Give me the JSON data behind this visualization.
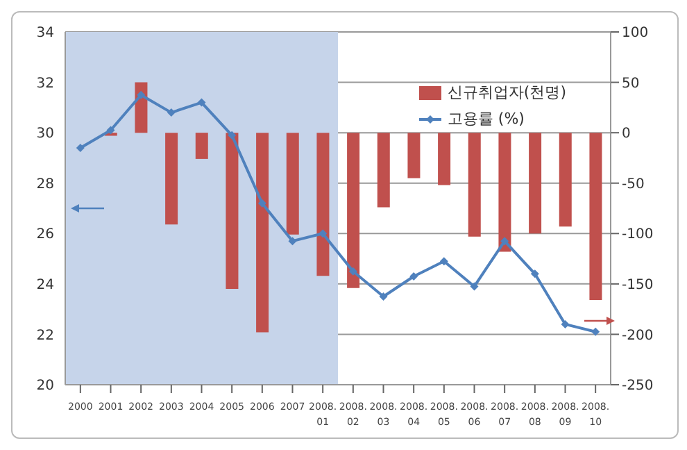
{
  "chart_data": {
    "type": "bar",
    "categories": [
      "2000",
      "2001",
      "2002",
      "2003",
      "2004",
      "2005",
      "2006",
      "2007",
      "2008.01",
      "2008.02",
      "2008.03",
      "2008.04",
      "2008.05",
      "2008.06",
      "2008.07",
      "2008.08",
      "2008.09",
      "2008.10"
    ],
    "series": [
      {
        "name": "신규취업자(천명)",
        "axis": "y2",
        "color": "#c0504d",
        "values": [
          0,
          -3,
          50,
          -91,
          -26,
          -155,
          -198,
          -101,
          -142,
          -154,
          -74,
          -45,
          -52,
          -103,
          -118,
          -100,
          -93,
          -166
        ]
      },
      {
        "name": "고용률 (%)",
        "type": "line",
        "color": "#4f81bd",
        "marker": "diamond",
        "values": [
          29.4,
          30.1,
          31.5,
          30.8,
          31.2,
          29.9,
          27.2,
          25.7,
          26.0,
          24.5,
          23.5,
          24.3,
          24.9,
          23.9,
          25.7,
          24.4,
          22.4,
          22.1
        ]
      }
    ],
    "ylim": [
      20,
      34
    ],
    "yticks": [
      20,
      22,
      24,
      26,
      28,
      30,
      32,
      34
    ],
    "y2lim": [
      -250,
      100
    ],
    "y2ticks": [
      -250,
      -200,
      -150,
      -100,
      -50,
      0,
      50,
      100
    ],
    "bands": [
      {
        "axis": "x",
        "from": "2000",
        "to": "2008.01",
        "color": "#c6d4ea"
      }
    ],
    "grid": "y",
    "legend": "top right"
  }
}
